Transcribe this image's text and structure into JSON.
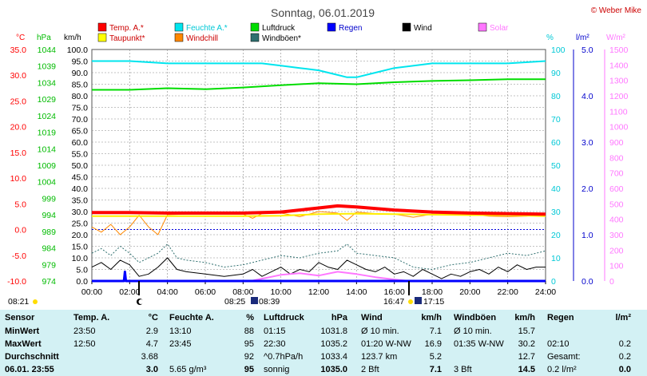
{
  "title": "Sonntag, 06.01.2019",
  "copyright": "© Weber Mike",
  "legend": [
    {
      "label": "Temp. A.*",
      "color": "#ff0000"
    },
    {
      "label": "Feuchte A.*",
      "color": "#00e5ee"
    },
    {
      "label": "Luftdruck",
      "color": "#00dd00"
    },
    {
      "label": "Regen",
      "color": "#0000ff"
    },
    {
      "label": "Wind",
      "color": "#000000"
    },
    {
      "label": "Solar",
      "color": "#ff77ff"
    },
    {
      "label": "Taupunkt*",
      "color": "#ffff00"
    },
    {
      "label": "Windchill",
      "color": "#ff8800"
    },
    {
      "label": "Windböen*",
      "color": "#2f6f6f"
    }
  ],
  "axis_units": {
    "temp": "°C",
    "pressure": "hPa",
    "wind": "km/h",
    "humidity": "%",
    "rain": "l/m²",
    "solar": "W/m²"
  },
  "sun_events": {
    "sunrise": "08:21",
    "sunset": "16:47"
  },
  "time_marks": [
    "08:25",
    "08:39",
    "17:15"
  ],
  "chart_data": {
    "type": "line",
    "x_range": [
      0,
      24
    ],
    "x_ticks": [
      "00:00",
      "02:00",
      "04:00",
      "06:00",
      "08:00",
      "10:00",
      "12:00",
      "14:00",
      "16:00",
      "18:00",
      "20:00",
      "22:00",
      "24:00"
    ],
    "axes": {
      "temp_c": {
        "ticks": [
          "35.0",
          "30.0",
          "25.0",
          "20.0",
          "15.0",
          "10.0",
          "5.0",
          "0.0",
          "-5.0",
          "-10.0"
        ],
        "range": [
          -10,
          35
        ]
      },
      "pressure_hpa": {
        "ticks": [
          "1044",
          "1039",
          "1034",
          "1029",
          "1024",
          "1019",
          "1014",
          "1009",
          "1004",
          "999",
          "994",
          "989",
          "984",
          "979",
          "974"
        ],
        "range": [
          974,
          1044
        ]
      },
      "wind_kmh": {
        "ticks": [
          "100.0",
          "95.0",
          "90.0",
          "85.0",
          "80.0",
          "75.0",
          "70.0",
          "65.0",
          "60.0",
          "55.0",
          "50.0",
          "45.0",
          "40.0",
          "35.0",
          "30.0",
          "25.0",
          "20.0",
          "15.0",
          "10.0",
          "5.0",
          "0.0"
        ],
        "range": [
          0,
          100
        ]
      },
      "humidity_pct": {
        "ticks": [
          "100",
          "90",
          "80",
          "70",
          "60",
          "50",
          "40",
          "30",
          "20",
          "10",
          "0"
        ],
        "range": [
          0,
          100
        ]
      },
      "rain_lm2": {
        "ticks": [
          "5.0",
          "4.0",
          "3.0",
          "2.0",
          "1.0",
          "0.0"
        ],
        "range": [
          0,
          5
        ]
      },
      "solar_wm2": {
        "ticks": [
          "1500",
          "1400",
          "1300",
          "1200",
          "1100",
          "1000",
          "900",
          "800",
          "700",
          "600",
          "500",
          "400",
          "300",
          "200",
          "100",
          "0"
        ],
        "range": [
          0,
          1500
        ]
      }
    },
    "series": [
      {
        "name": "Temp. A.*",
        "axis": "temp_c",
        "x": [
          0,
          2,
          4,
          6,
          8,
          10,
          12,
          13,
          14,
          16,
          18,
          20,
          22,
          24
        ],
        "values": [
          3.3,
          3.3,
          3.2,
          3.2,
          3.2,
          3.4,
          4.2,
          4.6,
          4.4,
          3.8,
          3.4,
          3.2,
          3.1,
          3.0
        ]
      },
      {
        "name": "Feuchte A.*",
        "axis": "humidity_pct",
        "x": [
          0,
          2,
          4,
          6,
          8,
          9,
          10,
          11,
          12,
          13,
          13.5,
          14,
          15,
          16,
          18,
          20,
          22,
          24
        ],
        "values": [
          95,
          95,
          94,
          94,
          94,
          94,
          93,
          92,
          91,
          89,
          88,
          88,
          90,
          92,
          94,
          94,
          94,
          95
        ]
      },
      {
        "name": "Luftdruck",
        "axis": "pressure_hpa",
        "x": [
          0,
          2,
          4,
          6,
          8,
          10,
          12,
          14,
          16,
          18,
          20,
          22,
          24
        ],
        "values": [
          1031.8,
          1031.8,
          1032.3,
          1032.0,
          1032.5,
          1033.2,
          1033.8,
          1033.5,
          1034.1,
          1034.5,
          1034.7,
          1035.0,
          1035.0
        ]
      },
      {
        "name": "Taupunkt*",
        "axis": "temp_c",
        "x": [
          0,
          2,
          4,
          6,
          8,
          10,
          12,
          14,
          16,
          18,
          20,
          22,
          24
        ],
        "values": [
          2.6,
          2.6,
          2.6,
          2.6,
          2.6,
          2.7,
          3.0,
          3.1,
          3.0,
          2.9,
          2.8,
          2.8,
          2.6
        ]
      },
      {
        "name": "Windchill",
        "axis": "temp_c",
        "x": [
          0,
          0.5,
          1,
          1.5,
          2,
          2.5,
          3,
          3.5,
          4,
          5,
          6,
          8,
          8.5,
          9,
          10,
          11,
          12,
          13,
          13.5,
          14,
          15,
          16,
          17,
          18,
          20,
          21,
          22,
          23,
          24
        ],
        "values": [
          0.5,
          -0.5,
          1.0,
          -1.0,
          0.5,
          2.8,
          0.5,
          -1.0,
          2.9,
          3.0,
          3.0,
          3.0,
          2.2,
          3.1,
          3.2,
          2.5,
          3.5,
          3.2,
          1.8,
          3.4,
          3.1,
          3.0,
          2.4,
          3.0,
          3.0,
          2.6,
          2.5,
          2.6,
          3.0
        ]
      },
      {
        "name": "Wind",
        "axis": "wind_kmh",
        "x": [
          0,
          0.5,
          1,
          1.5,
          2,
          2.5,
          3,
          3.5,
          4,
          4.5,
          5,
          6,
          7,
          8,
          8.5,
          9,
          9.5,
          10,
          10.5,
          11,
          11.5,
          12,
          12.5,
          13,
          13.5,
          14,
          14.5,
          15,
          15.5,
          16,
          16.5,
          17,
          17.5,
          18,
          18.5,
          19,
          19.5,
          20,
          20.5,
          21,
          21.5,
          22,
          22.5,
          23,
          23.5,
          24
        ],
        "values": [
          6,
          8,
          5,
          9,
          7,
          2,
          3,
          6,
          10,
          5,
          4,
          3,
          2,
          3,
          5,
          2,
          4,
          6,
          3,
          5,
          4,
          8,
          6,
          5,
          9,
          7,
          5,
          4,
          6,
          3,
          4,
          2,
          5,
          3,
          1,
          3,
          2,
          4,
          5,
          3,
          6,
          4,
          7,
          5,
          6,
          6
        ]
      },
      {
        "name": "Windböen*",
        "axis": "wind_kmh",
        "x": [
          0,
          0.5,
          1,
          1.5,
          2,
          2.5,
          3,
          3.5,
          4,
          4.5,
          5,
          6,
          7,
          8,
          9,
          10,
          11,
          12,
          13,
          13.5,
          14,
          15,
          16,
          17,
          18,
          19,
          20,
          21,
          22,
          23,
          24
        ],
        "values": [
          12,
          14,
          11,
          15,
          12,
          8,
          10,
          12,
          16,
          10,
          9,
          8,
          6,
          7,
          9,
          11,
          10,
          12,
          13,
          16,
          12,
          11,
          10,
          6,
          5,
          7,
          8,
          10,
          12,
          11,
          13
        ]
      },
      {
        "name": "Regen",
        "axis": "rain_lm2",
        "x": [
          0,
          1.7,
          1.75,
          1.8,
          24
        ],
        "values": [
          0,
          0,
          0.2,
          0,
          0
        ]
      },
      {
        "name": "Solar",
        "axis": "solar_wm2",
        "x": [
          0,
          8.4,
          9,
          10,
          11,
          12,
          13,
          14,
          15,
          16,
          16.8,
          24
        ],
        "values": [
          0,
          0,
          15,
          40,
          50,
          35,
          60,
          45,
          25,
          10,
          0,
          0
        ]
      }
    ]
  },
  "stats": {
    "headers": [
      "Sensor",
      "Temp. A.",
      "°C",
      "Feuchte A.",
      "%",
      "Luftdruck",
      "hPa",
      "Wind",
      "km/h",
      "Windböen",
      "km/h",
      "Regen",
      "l/m²"
    ],
    "rows": [
      {
        "label": "MinWert",
        "temp_time": "23:50",
        "temp": "2.9",
        "hum_time": "13:10",
        "hum": "88",
        "press_time": "01:15",
        "press": "1031.8",
        "wind_label": "Ø 10 min.",
        "wind": "7.1",
        "gust_label": "Ø 10 min.",
        "gust": "15.7",
        "rain_label": "",
        "rain": ""
      },
      {
        "label": "MaxWert",
        "temp_time": "12:50",
        "temp": "4.7",
        "hum_time": "23:45",
        "hum": "95",
        "press_time": "22:30",
        "press": "1035.2",
        "wind_label": "01:20    W-NW",
        "wind": "16.9",
        "gust_label": "01:35    W-NW",
        "gust": "30.2",
        "rain_label": "02:10",
        "rain": "0.2"
      },
      {
        "label": "Durchschnitt",
        "temp_time": "",
        "temp": "3.68",
        "hum_time": "",
        "hum": "92",
        "press_time": "^0.7hPa/h",
        "press": "1033.4",
        "wind_label": "123.7 km",
        "wind": "5.2",
        "gust_label": "",
        "gust": "12.7",
        "rain_label": "Gesamt:",
        "rain": "0.2"
      },
      {
        "label": "06.01. 23:55",
        "temp_time": "",
        "temp": "3.0",
        "hum_time": "5.65 g/m³",
        "hum": "95",
        "press_time": "sonnig",
        "press": "1035.0",
        "wind_label": "2 Bft",
        "wind": "7.1",
        "gust_label": "3 Bft",
        "gust": "14.5",
        "rain_label": "0.2 l/m²",
        "rain": "0.0"
      }
    ]
  }
}
